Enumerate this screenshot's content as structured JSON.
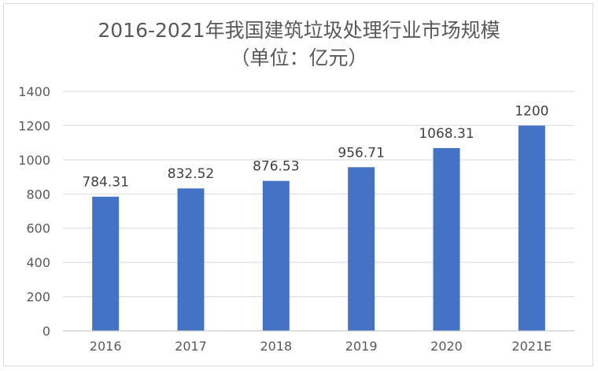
{
  "chart_data": {
    "type": "bar",
    "title": "2016-2021年我国建筑垃圾处理行业市场规模",
    "subtitle": "（单位：亿元）",
    "xlabel": "",
    "ylabel": "",
    "categories": [
      "2016",
      "2017",
      "2018",
      "2019",
      "2020",
      "2021E"
    ],
    "values": [
      784.31,
      832.52,
      876.53,
      956.71,
      1068.31,
      1200
    ],
    "data_labels": [
      "784.31",
      "832.52",
      "876.53",
      "956.71",
      "1068.31",
      "1200"
    ],
    "ylim": [
      0,
      1400
    ],
    "yticks": [
      "0",
      "200",
      "400",
      "600",
      "800",
      "1000",
      "1200",
      "1400"
    ],
    "ytick_values": [
      0,
      200,
      400,
      600,
      800,
      1000,
      1200,
      1400
    ],
    "grid": true,
    "legend": "none",
    "colors": {
      "bar": "#4472c4",
      "grid": "#d9d9d9",
      "axis": "#bfbfbf",
      "text": "#595959",
      "border": "#d9d9d9"
    }
  }
}
